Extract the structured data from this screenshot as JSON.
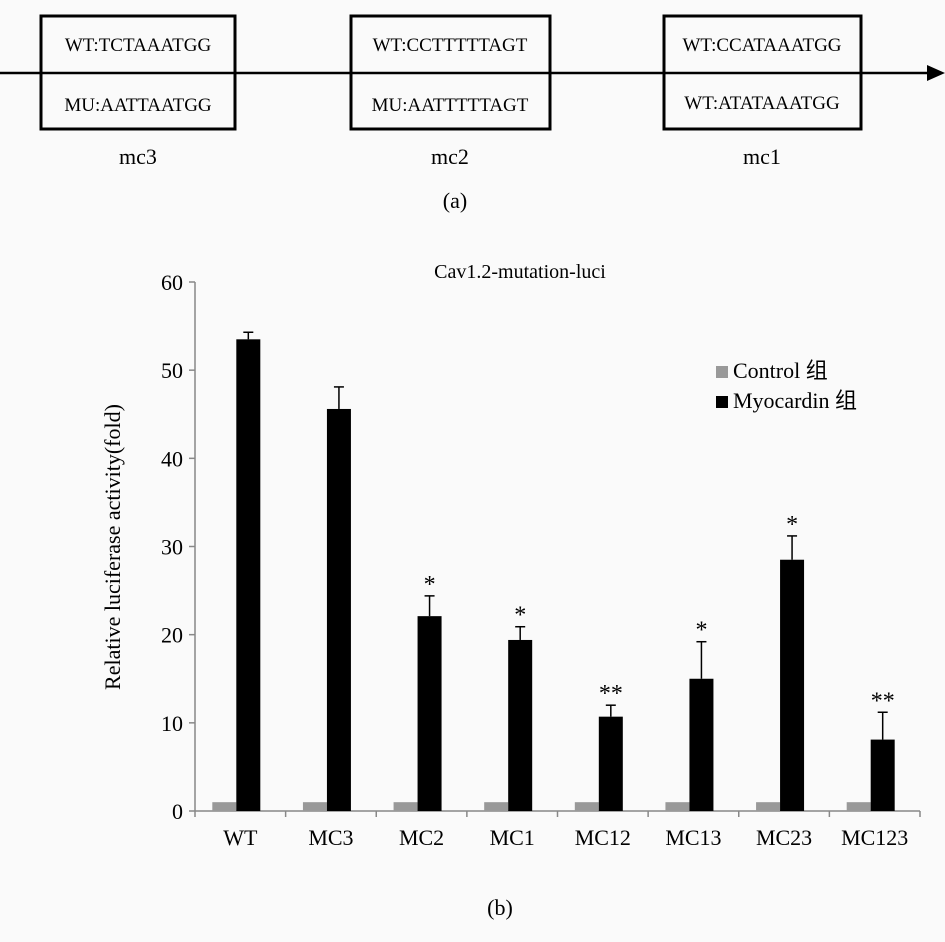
{
  "panel_a": {
    "label": "(a)",
    "sites": [
      {
        "name": "mc3",
        "top": "WT:TCTAAATGG",
        "bottom": "MU:AATTAATGG"
      },
      {
        "name": "mc2",
        "top": "WT:CCTTTTTAGT",
        "bottom": "MU:AATTTTTAGT"
      },
      {
        "name": "mc1",
        "top": "WT:CCATAAATGG",
        "bottom": "WT:ATATAAATGG"
      }
    ]
  },
  "panel_b_label": "(b)",
  "chart_data": {
    "type": "bar",
    "title": "Cav1.2-mutation-luci",
    "xlabel": "",
    "ylabel": "Relative luciferase activity(fold)",
    "ylim": [
      0,
      60
    ],
    "yticks": [
      0,
      10,
      20,
      30,
      40,
      50,
      60
    ],
    "grid": false,
    "legend_position": "top-right",
    "categories": [
      "WT",
      "MC3",
      "MC2",
      "MC1",
      "MC12",
      "MC13",
      "MC23",
      "MC123"
    ],
    "series": [
      {
        "name": "Control 组",
        "color": "#999999",
        "values": [
          1,
          1,
          1,
          1,
          1,
          1,
          1,
          1
        ]
      },
      {
        "name": "Myocardin 组",
        "color": "#000000",
        "values": [
          53.5,
          45.6,
          22.1,
          19.4,
          10.7,
          15.0,
          28.5,
          8.1
        ],
        "errors": [
          0.8,
          2.5,
          2.3,
          1.5,
          1.3,
          4.2,
          2.7,
          3.1
        ],
        "significance": [
          "",
          "",
          "*",
          "*",
          "**",
          "*",
          "*",
          "**"
        ]
      }
    ]
  }
}
